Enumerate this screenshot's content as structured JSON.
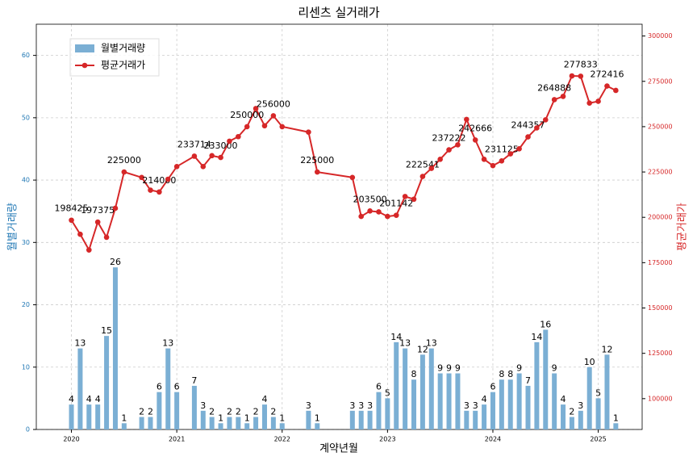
{
  "chart_data": {
    "type": "bar_line",
    "title": "리센츠 실거래가",
    "xlabel": "계약년월",
    "ylabel": "월별거래량",
    "y2label": "평균거래가",
    "x": [
      "2020-01",
      "2020-02",
      "2020-03",
      "2020-04",
      "2020-05",
      "2020-06",
      "2020-07",
      "2020-09",
      "2020-10",
      "2020-11",
      "2020-12",
      "2021-01",
      "2021-03",
      "2021-04",
      "2021-05",
      "2021-06",
      "2021-07",
      "2021-08",
      "2021-09",
      "2021-10",
      "2021-11",
      "2021-12",
      "2022-01",
      "2022-04",
      "2022-05",
      "2022-09",
      "2022-10",
      "2022-11",
      "2022-12",
      "2023-01",
      "2023-02",
      "2023-03",
      "2023-04",
      "2023-05",
      "2023-06",
      "2023-07",
      "2023-08",
      "2023-09",
      "2023-10",
      "2023-11",
      "2023-12",
      "2024-01",
      "2024-02",
      "2024-03",
      "2024-04",
      "2024-05",
      "2024-06",
      "2024-07",
      "2024-08",
      "2024-09",
      "2024-10",
      "2024-11",
      "2024-12",
      "2025-01",
      "2025-02",
      "2025-03"
    ],
    "series": [
      {
        "name": "월별거래량",
        "kind": "bar",
        "color": "#7bafd4",
        "axis": "y",
        "values": [
          4,
          13,
          4,
          4,
          15,
          26,
          1,
          2,
          2,
          6,
          13,
          6,
          7,
          3,
          2,
          1,
          2,
          2,
          1,
          2,
          4,
          2,
          1,
          3,
          1,
          3,
          3,
          3,
          6,
          5,
          14,
          13,
          8,
          12,
          13,
          9,
          9,
          9,
          3,
          3,
          4,
          6,
          8,
          8,
          9,
          7,
          14,
          16,
          9,
          4,
          2,
          3,
          10,
          5,
          12,
          1
        ]
      },
      {
        "name": "평균거래가",
        "kind": "line",
        "color": "#d62728",
        "axis": "y2",
        "values": [
          198425,
          190667,
          182000,
          197375,
          189000,
          205000,
          225000,
          222000,
          215000,
          214000,
          221000,
          228000,
          233714,
          228000,
          234000,
          233000,
          242000,
          244500,
          250000,
          260000,
          250500,
          256000,
          250000,
          247000,
          225000,
          222000,
          200500,
          203500,
          203000,
          200500,
          201142,
          211500,
          210000,
          222541,
          227000,
          232000,
          237222,
          240000,
          254000,
          242666,
          232000,
          228500,
          231125,
          235000,
          237800,
          244357,
          249300,
          253800,
          264888,
          266700,
          278000,
          277833,
          263000,
          264000,
          272416,
          270000
        ],
        "value_labels": [
          "198425",
          null,
          null,
          "197375",
          null,
          null,
          "225000",
          null,
          null,
          "214000",
          null,
          null,
          "233714",
          null,
          null,
          "233000",
          null,
          null,
          "250000",
          null,
          null,
          "256000",
          null,
          null,
          "225000",
          null,
          null,
          "203500",
          null,
          null,
          "201142",
          null,
          null,
          "222541",
          null,
          null,
          "237222",
          null,
          null,
          "242666",
          null,
          null,
          "231125",
          null,
          null,
          "244357",
          null,
          null,
          "264888",
          null,
          null,
          "277833",
          null,
          null,
          "272416",
          null
        ]
      }
    ],
    "xlim": [
      "2019-09",
      "2025-06"
    ],
    "xticks": [
      {
        "value": "2020-01",
        "label": "2020"
      },
      {
        "value": "2021-01",
        "label": "2021"
      },
      {
        "value": "2022-01",
        "label": "2022"
      },
      {
        "value": "2023-01",
        "label": "2023"
      },
      {
        "value": "2024-01",
        "label": "2024"
      },
      {
        "value": "2025-01",
        "label": "2025"
      }
    ],
    "ylim": [
      0,
      65
    ],
    "yticks": [
      0,
      10,
      20,
      30,
      40,
      50,
      60
    ],
    "y2lim": [
      83000,
      306500
    ],
    "y2ticks": [
      100000,
      125000,
      150000,
      175000,
      200000,
      225000,
      250000,
      275000,
      300000
    ],
    "grid": true,
    "legend": "upper left"
  }
}
